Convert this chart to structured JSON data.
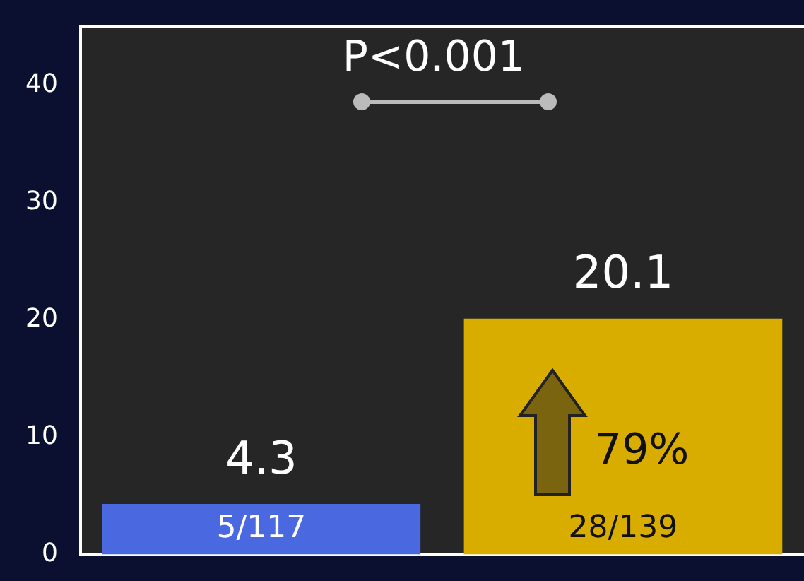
{
  "chart_data": {
    "type": "bar",
    "categories": [
      null,
      null
    ],
    "values": [
      4.3,
      20.1
    ],
    "colors": [
      "#4a68e0",
      "#d9ac00"
    ],
    "ylim": [
      0,
      45
    ],
    "yticks": [
      0,
      10,
      20,
      30,
      40
    ],
    "data_labels": true,
    "grid": false,
    "legend": false,
    "annotations": [
      "P<0.001",
      "5/117",
      "28/139",
      "79%"
    ]
  }
}
